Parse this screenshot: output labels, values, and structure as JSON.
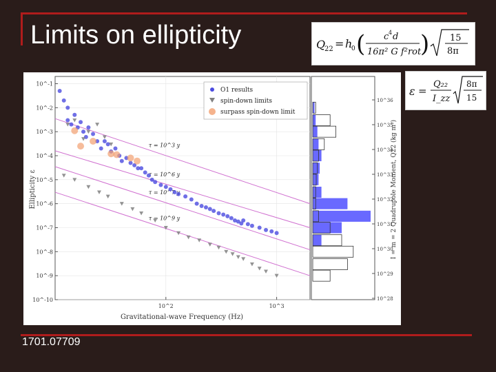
{
  "slide": {
    "title": "Limits on ellipticity",
    "footer": "1701.07709",
    "accent": "#b01c1c",
    "background": "#2a1c1a"
  },
  "equations": {
    "quadrupole": "Q22 = h0 (c^4 d / (16 π^2 G f_rot^2)) sqrt(15 / 8π)",
    "ellipticity": "ε = (Q22 / Izz) sqrt(8π / 15)"
  },
  "chart_data": {
    "type": "scatter",
    "xlabel": "Gravitational-wave Frequency (Hz)",
    "ylabel": "Ellipticity ε",
    "y2label": "I = m = 2 Quadrupole Moment, Q22 (kg m²)",
    "x_scale": "log",
    "y_scale": "log",
    "xlim": [
      10,
      2000
    ],
    "ylim": [
      1e-10,
      0.2
    ],
    "x_ticks": [
      "10^2",
      "10^3"
    ],
    "y_ticks": [
      "10^-1",
      "10^-2",
      "10^-3",
      "10^-4",
      "10^-5",
      "10^-6",
      "10^-7",
      "10^-8",
      "10^-9",
      "10^-10"
    ],
    "y2_ticks": [
      "10^36",
      "10^35",
      "10^34",
      "10^33",
      "10^32",
      "10^31",
      "10^30",
      "10^29",
      "10^28"
    ],
    "legend": {
      "placement": "top-right",
      "entries": [
        "O1 results",
        "spin-down limits",
        "surpass spin-down limit"
      ]
    },
    "colors": {
      "o1": "#4b4be0",
      "spindown": "#808080",
      "surpass": "#f2a070",
      "age_lines": "#d070d0",
      "histogram_fill": "#4444ff"
    },
    "age_lines": [
      {
        "label": "τ = 10^3 y",
        "x": [
          10,
          2000
        ],
        "y": [
          0.0035,
          1e-06
        ]
      },
      {
        "label": "τ = 10^6 y",
        "x": [
          10,
          2000
        ],
        "y": [
          0.00016,
          1e-07
        ]
      },
      {
        "label": "τ = 10^7 y",
        "x": [
          10,
          2000
        ],
        "y": [
          3.5e-05,
          1.2e-08
        ]
      },
      {
        "label": "τ = 10^9 y",
        "x": [
          10,
          2000
        ],
        "y": [
          3e-06,
          1e-09
        ]
      }
    ],
    "series": [
      {
        "name": "O1 results",
        "marker": "circle",
        "points": [
          [
            11,
            0.05
          ],
          [
            12,
            0.02
          ],
          [
            13,
            0.01
          ],
          [
            13,
            0.003
          ],
          [
            14,
            0.002
          ],
          [
            15,
            0.005
          ],
          [
            16,
            0.0015
          ],
          [
            17,
            0.0025
          ],
          [
            18,
            0.001
          ],
          [
            19,
            0.0006
          ],
          [
            20,
            0.0015
          ],
          [
            22,
            0.0008
          ],
          [
            24,
            0.0004
          ],
          [
            26,
            0.0002
          ],
          [
            28,
            0.0004
          ],
          [
            30,
            0.0003
          ],
          [
            32,
            0.00015
          ],
          [
            35,
            0.0002
          ],
          [
            38,
            0.0001
          ],
          [
            40,
            6e-05
          ],
          [
            44,
            8e-05
          ],
          [
            48,
            5e-05
          ],
          [
            52,
            4e-05
          ],
          [
            56,
            3e-05
          ],
          [
            60,
            3e-05
          ],
          [
            65,
            2e-05
          ],
          [
            70,
            1.5e-05
          ],
          [
            75,
            1e-05
          ],
          [
            80,
            8e-06
          ],
          [
            90,
            6e-06
          ],
          [
            100,
            5e-06
          ],
          [
            110,
            4e-06
          ],
          [
            120,
            3e-06
          ],
          [
            130,
            2.5e-06
          ],
          [
            150,
            2e-06
          ],
          [
            170,
            1.5e-06
          ],
          [
            190,
            1e-06
          ],
          [
            210,
            8e-07
          ],
          [
            230,
            7e-07
          ],
          [
            250,
            6e-07
          ],
          [
            270,
            5e-07
          ],
          [
            300,
            4e-07
          ],
          [
            330,
            3.5e-07
          ],
          [
            360,
            3e-07
          ],
          [
            390,
            2.5e-07
          ],
          [
            420,
            2e-07
          ],
          [
            450,
            1.8e-07
          ],
          [
            480,
            1.5e-07
          ],
          [
            500,
            2e-07
          ],
          [
            550,
            1.4e-07
          ],
          [
            600,
            1.2e-07
          ],
          [
            700,
            1e-07
          ],
          [
            800,
            8e-08
          ],
          [
            900,
            7e-08
          ],
          [
            1000,
            6e-08
          ]
        ]
      },
      {
        "name": "spin-down limits",
        "marker": "triangle-down",
        "points": [
          [
            13,
            0.002
          ],
          [
            15,
            0.003
          ],
          [
            18,
            0.0005
          ],
          [
            20,
            0.001
          ],
          [
            24,
            0.002
          ],
          [
            28,
            0.0006
          ],
          [
            32,
            0.0003
          ],
          [
            12,
            1.5e-05
          ],
          [
            15,
            1e-05
          ],
          [
            20,
            5e-06
          ],
          [
            25,
            3e-06
          ],
          [
            30,
            2e-06
          ],
          [
            40,
            1e-06
          ],
          [
            50,
            6e-07
          ],
          [
            60,
            4e-07
          ],
          [
            80,
            2e-07
          ],
          [
            100,
            1e-07
          ],
          [
            130,
            6e-08
          ],
          [
            160,
            4e-08
          ],
          [
            200,
            3e-08
          ],
          [
            250,
            2e-08
          ],
          [
            300,
            1.5e-08
          ],
          [
            350,
            1e-08
          ],
          [
            400,
            8e-09
          ],
          [
            450,
            6e-09
          ],
          [
            500,
            5e-09
          ],
          [
            600,
            3e-09
          ],
          [
            700,
            2e-09
          ],
          [
            800,
            1.5e-09
          ],
          [
            1000,
            1e-09
          ]
        ]
      },
      {
        "name": "surpass spin-down limit",
        "marker": "circle-large",
        "points": [
          [
            15,
            0.0011
          ],
          [
            17,
            0.00025
          ],
          [
            22,
            0.0004
          ],
          [
            32,
            0.00012
          ],
          [
            36,
            0.00011
          ],
          [
            48,
            8e-05
          ],
          [
            55,
            6e-05
          ]
        ]
      }
    ],
    "histograms": [
      {
        "name": "O1 results",
        "style": "filled",
        "bins": [
          [
            0.01,
            0.03
          ],
          [
            0.003,
            0.05
          ],
          [
            0.001,
            0.08
          ],
          [
            0.0003,
            0.1
          ],
          [
            0.0001,
            0.15
          ],
          [
            3e-05,
            0.12
          ],
          [
            1e-05,
            0.1
          ],
          [
            3e-06,
            0.15
          ],
          [
            1e-06,
            0.6
          ],
          [
            3e-07,
            1.0
          ],
          [
            1e-07,
            0.5
          ],
          [
            3e-08,
            0.15
          ]
        ]
      },
      {
        "name": "spin-down limits",
        "style": "outline",
        "bins": [
          [
            0.01,
            0.05
          ],
          [
            0.003,
            0.3
          ],
          [
            0.001,
            0.4
          ],
          [
            0.0003,
            0.2
          ],
          [
            0.0001,
            0.1
          ],
          [
            3e-05,
            0.08
          ],
          [
            1e-05,
            0.06
          ],
          [
            3e-06,
            0.05
          ],
          [
            1e-06,
            0.05
          ],
          [
            3e-07,
            0.1
          ],
          [
            1e-07,
            0.3
          ],
          [
            3e-08,
            0.5
          ],
          [
            1e-08,
            0.7
          ],
          [
            3e-09,
            0.6
          ],
          [
            1e-09,
            0.3
          ]
        ]
      }
    ]
  }
}
